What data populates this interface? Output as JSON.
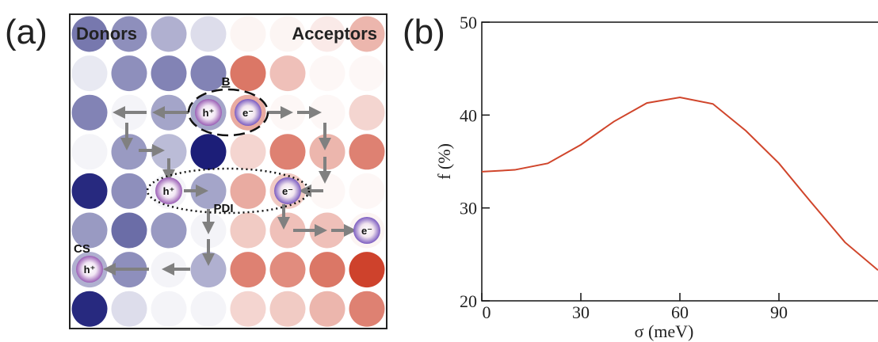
{
  "panel_a": {
    "label": "(a)",
    "donors": "Donors",
    "acceptors": "Acceptors",
    "annotations": [
      "B",
      "PDI",
      "CS"
    ],
    "charges": [
      "h⁺",
      "e⁻",
      "h⁺",
      "e⁻",
      "e⁻",
      "h⁺"
    ]
  },
  "chart_data": {
    "type": "line",
    "panel_label": "(b)",
    "xlabel": "σ (meV)",
    "ylabel": "f (%)",
    "x": [
      0,
      10,
      20,
      30,
      40,
      50,
      60,
      70,
      80,
      90,
      100,
      110,
      120
    ],
    "series": [
      {
        "color": "#d0452b",
        "values": [
          33.9,
          34.1,
          34.8,
          36.8,
          39.3,
          41.3,
          41.9,
          41.2,
          38.3,
          34.8,
          30.5,
          26.3,
          23.3
        ]
      }
    ],
    "xlim": [
      0,
      120
    ],
    "ylim": [
      20,
      50
    ],
    "xticks": [
      0,
      30,
      60,
      90
    ],
    "yticks": [
      20,
      30,
      40,
      50
    ]
  }
}
